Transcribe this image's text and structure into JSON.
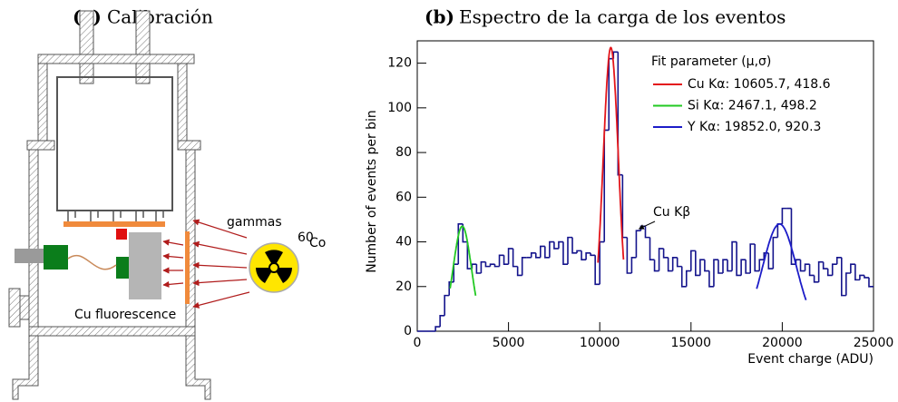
{
  "diagram": {
    "panel": "(a)",
    "title": "Calibración",
    "gammas": "gammas",
    "isotope_mass": "60",
    "isotope": "Co",
    "fluorescence": "Cu fluorescence"
  },
  "chart_data": {
    "type": "histogram",
    "panel": "(b)",
    "title": "Espectro de la carga de los eventos",
    "xlabel": "Event charge (ADU)",
    "ylabel": "Number of events per bin",
    "xlim": [
      0,
      25000
    ],
    "ylim": [
      0,
      130
    ],
    "xticks": [
      0,
      5000,
      10000,
      15000,
      20000,
      25000
    ],
    "yticks": [
      0,
      20,
      40,
      60,
      80,
      100,
      120
    ],
    "color": "#14148c",
    "bins": [
      0,
      250,
      500,
      750,
      1000,
      1250,
      1500,
      1750,
      2000,
      2250,
      2500,
      2750,
      3000,
      3250,
      3500,
      3750,
      4000,
      4250,
      4500,
      4750,
      5000,
      5250,
      5500,
      5750,
      6000,
      6250,
      6500,
      6750,
      7000,
      7250,
      7500,
      7750,
      8000,
      8250,
      8500,
      8750,
      9000,
      9250,
      9500,
      9750,
      10000,
      10250,
      10500,
      10750,
      11000,
      11250,
      11500,
      11750,
      12000,
      12250,
      12500,
      12750,
      13000,
      13250,
      13500,
      13750,
      14000,
      14250,
      14500,
      14750,
      15000,
      15250,
      15500,
      15750,
      16000,
      16250,
      16500,
      16750,
      17000,
      17250,
      17500,
      17750,
      18000,
      18250,
      18500,
      18750,
      19000,
      19250,
      19500,
      19750,
      20000,
      20250,
      20500,
      20750,
      21000,
      21250,
      21500,
      21750,
      22000,
      22250,
      22500,
      22750,
      23000,
      23250,
      23500,
      23750,
      24000,
      24250,
      24500,
      24750,
      25000
    ],
    "values": [
      0,
      0,
      0,
      0,
      2,
      7,
      16,
      22,
      30,
      48,
      40,
      28,
      30,
      26,
      31,
      29,
      30,
      29,
      34,
      30,
      37,
      29,
      25,
      33,
      33,
      35,
      33,
      38,
      33,
      40,
      37,
      40,
      30,
      42,
      35,
      36,
      32,
      35,
      34,
      21,
      40,
      90,
      122,
      125,
      70,
      42,
      26,
      33,
      45,
      47,
      42,
      32,
      27,
      37,
      33,
      27,
      33,
      29,
      20,
      27,
      36,
      25,
      32,
      27,
      20,
      32,
      26,
      32,
      27,
      40,
      25,
      32,
      26,
      39,
      27,
      32,
      35,
      28,
      42,
      48,
      55,
      55,
      30,
      32,
      27,
      30,
      25,
      22,
      31,
      28,
      25,
      30,
      33,
      16,
      26,
      30,
      23,
      25,
      24,
      20
    ],
    "legend_title": "Fit parameter (μ,σ)",
    "fits": [
      {
        "name": "Cu Kα: 10605.7, 418.6",
        "color": "#e3161b",
        "mean": 10605.7,
        "sigma": 418.6,
        "amplitude": 127,
        "xrange": [
          9900,
          11300
        ]
      },
      {
        "name": "Si Kα: 2467.1, 498.2",
        "color": "#22c922",
        "mean": 2467.1,
        "sigma": 498.2,
        "amplitude": 47,
        "xrange": [
          1800,
          3200
        ]
      },
      {
        "name": "Y Kα: 19852.0, 920.3",
        "color": "#1c1cc8",
        "mean": 19852.0,
        "sigma": 920.3,
        "amplitude": 48,
        "xrange": [
          18600,
          21300
        ]
      }
    ],
    "annotation": {
      "text": "Cu Kβ",
      "x": 12000,
      "y": 45
    }
  }
}
